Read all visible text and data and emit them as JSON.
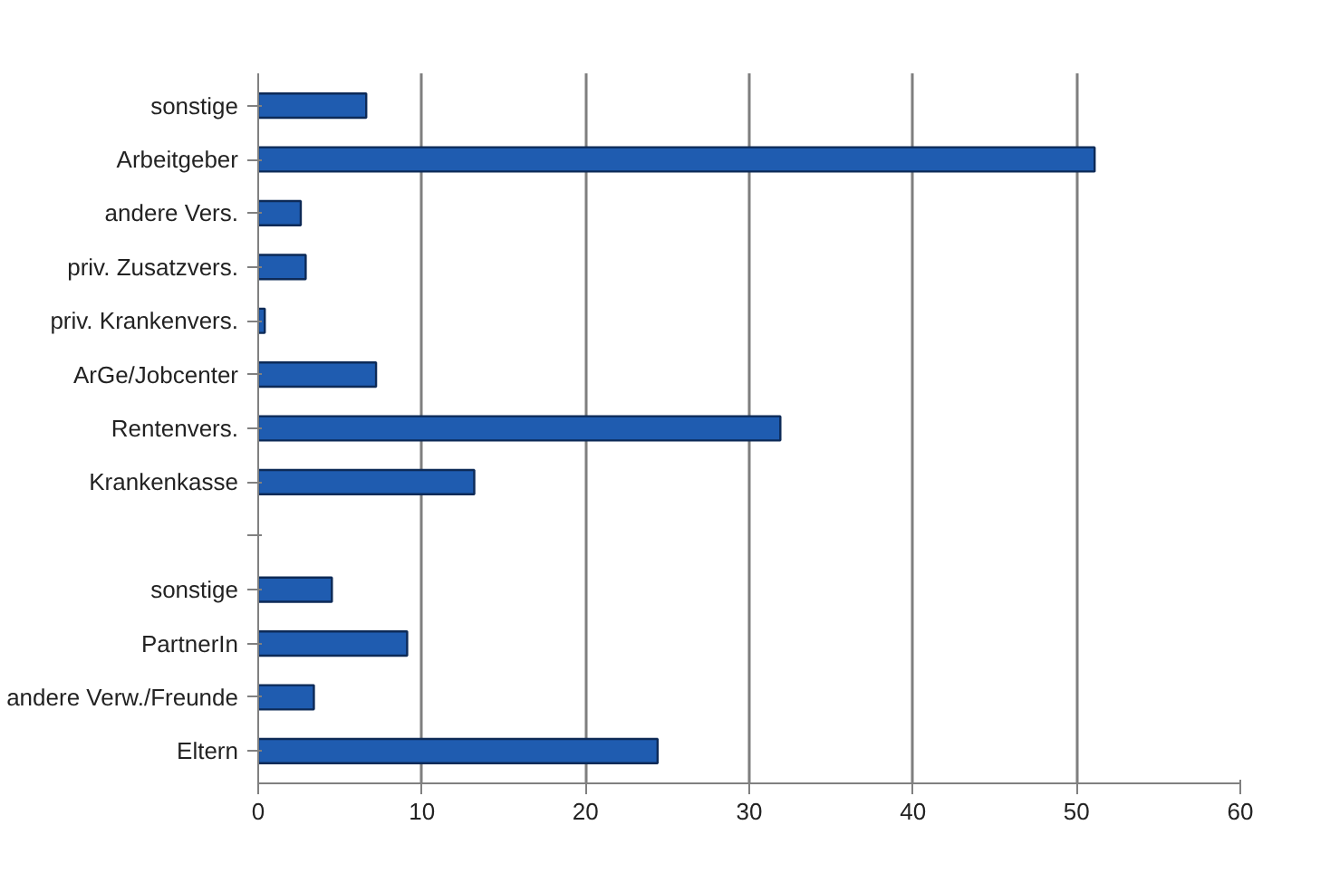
{
  "chart_data": {
    "type": "bar",
    "orientation": "horizontal",
    "categories": [
      "sonstige",
      "Arbeitgeber",
      "andere Vers.",
      "priv. Zusatzvers.",
      "priv. Krankenvers.",
      "ArGe/Jobcenter",
      "Rentenvers.",
      "Krankenkasse",
      null,
      "sonstige",
      "PartnerIn",
      "andere Verw./Freunde",
      "Eltern"
    ],
    "values": [
      6.6,
      51.1,
      2.6,
      2.9,
      0.4,
      7.2,
      31.9,
      13.2,
      null,
      4.5,
      9.1,
      3.4,
      24.4
    ],
    "color": "#1f5cb0",
    "xlim": [
      0,
      60
    ],
    "xticks": [
      0,
      10,
      20,
      30,
      40,
      50,
      60
    ],
    "grid": "x"
  }
}
